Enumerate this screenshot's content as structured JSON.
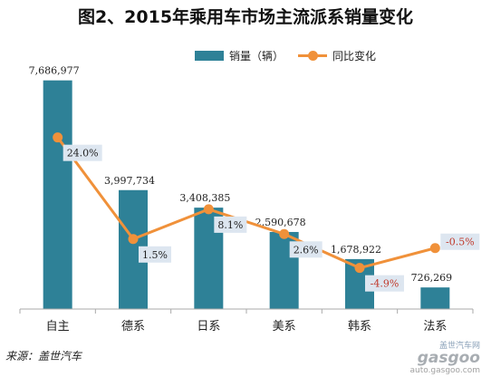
{
  "chart_data": {
    "type": "bar",
    "title": "图2、2015年乘用车市场主流派系销量变化",
    "categories": [
      "自主",
      "德系",
      "日系",
      "美系",
      "韩系",
      "法系"
    ],
    "series": [
      {
        "name": "销量（辆）",
        "type": "bar",
        "values": [
          7686977,
          3997734,
          3408385,
          2590678,
          1678922,
          726269
        ],
        "labels": [
          "7,686,977",
          "3,997,734",
          "3,408,385",
          "2,590,678",
          "1,678,922",
          "726,269"
        ],
        "color": "#2e8197"
      },
      {
        "name": "同比变化",
        "type": "line",
        "values": [
          24.0,
          1.5,
          8.1,
          2.6,
          -4.9,
          -0.5
        ],
        "labels": [
          "24.0%",
          "1.5%",
          "8.1%",
          "2.6%",
          "-4.9%",
          "-0.5%"
        ],
        "color": "#f0913a"
      }
    ],
    "ylim": [
      0,
      8500000
    ],
    "y2lim": [
      -14,
      42
    ],
    "grid": false,
    "legend_position": "top-center"
  },
  "colors": {
    "negative_label": "#c0392b",
    "label_box": "#dde6f0",
    "axis": "#aaaaaa"
  },
  "footer": {
    "source": "来源：盖世汽车",
    "watermark_cn": "盖世汽车网",
    "watermark_brand": "gasgoo",
    "watermark_url": "auto.gasgoo.com"
  }
}
